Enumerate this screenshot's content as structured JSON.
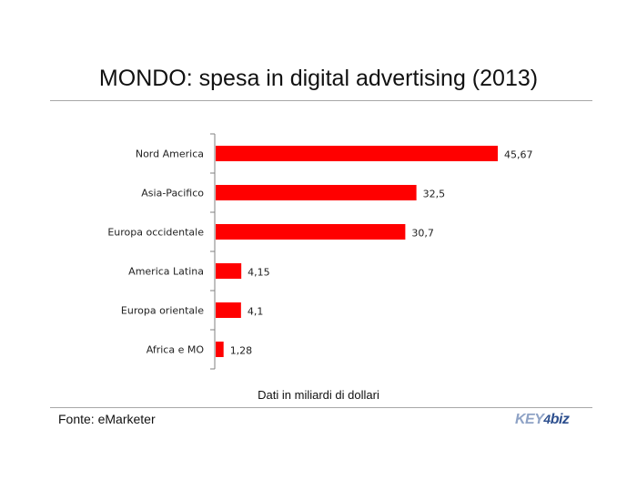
{
  "title": "MONDO: spesa in digital advertising (2013)",
  "note": "Dati in miliardi di dollari",
  "source": "Fonte: eMarketer",
  "logo": {
    "text": "KEY4biz"
  },
  "colors": {
    "bar": "#ff0000",
    "axis": "#808080",
    "rule": "#a8a8a8"
  },
  "chart_data": {
    "type": "bar",
    "orientation": "horizontal",
    "title": "MONDO: spesa in digital advertising (2013)",
    "categories": [
      "Nord America",
      "Asia-Pacifico",
      "Europa occidentale",
      "America Latina",
      "Europa orientale",
      "Africa e MO"
    ],
    "values": [
      45.67,
      32.5,
      30.7,
      4.15,
      4.1,
      1.28
    ],
    "value_labels": [
      "45,67",
      "32,5",
      "30,7",
      "4,15",
      "4,1",
      "1,28"
    ],
    "xlim": [
      0,
      45.67
    ],
    "grid": false,
    "legend": "none"
  }
}
